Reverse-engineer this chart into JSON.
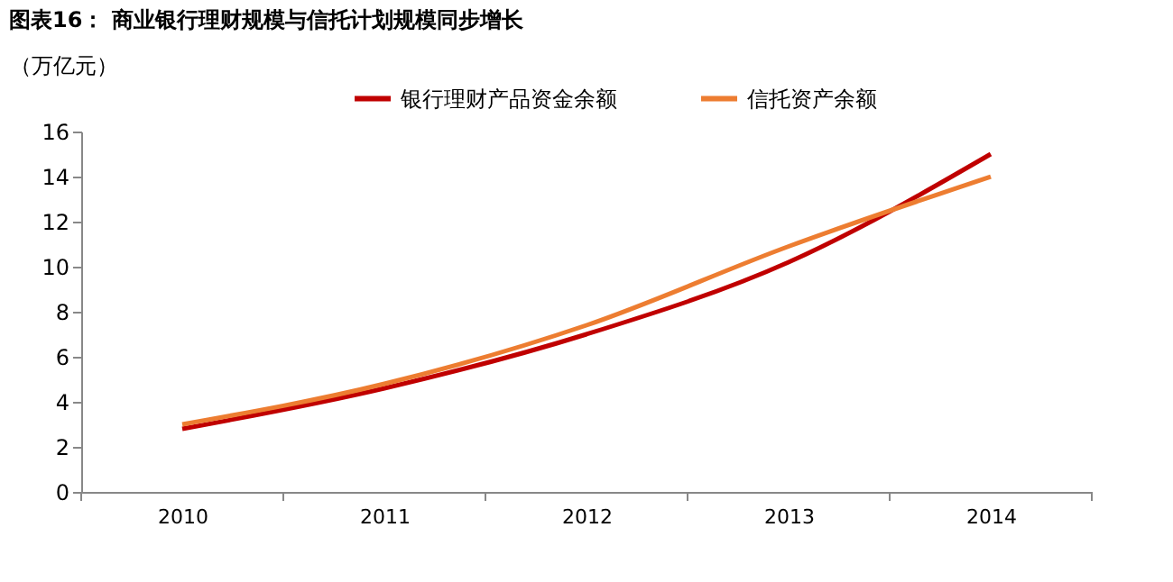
{
  "chart_data": {
    "type": "line",
    "title": "图表16：  商业银行理财规模与信托计划规模同步增长",
    "ylabel": "（万亿元）",
    "categories": [
      "2010",
      "2011",
      "2012",
      "2013",
      "2014"
    ],
    "series": [
      {
        "name": "银行理财产品资金余额",
        "color": "#c00000",
        "values": [
          2.8,
          4.6,
          7.0,
          10.2,
          15.0
        ]
      },
      {
        "name": "信托资产余额",
        "color": "#ed7d31",
        "values": [
          3.0,
          4.8,
          7.4,
          10.9,
          14.0
        ]
      }
    ],
    "ylim": [
      0,
      16
    ],
    "yticks": [
      0,
      2,
      4,
      6,
      8,
      10,
      12,
      14,
      16
    ],
    "grid": false,
    "legend": "top",
    "marker": "none",
    "line_style": "solid"
  }
}
